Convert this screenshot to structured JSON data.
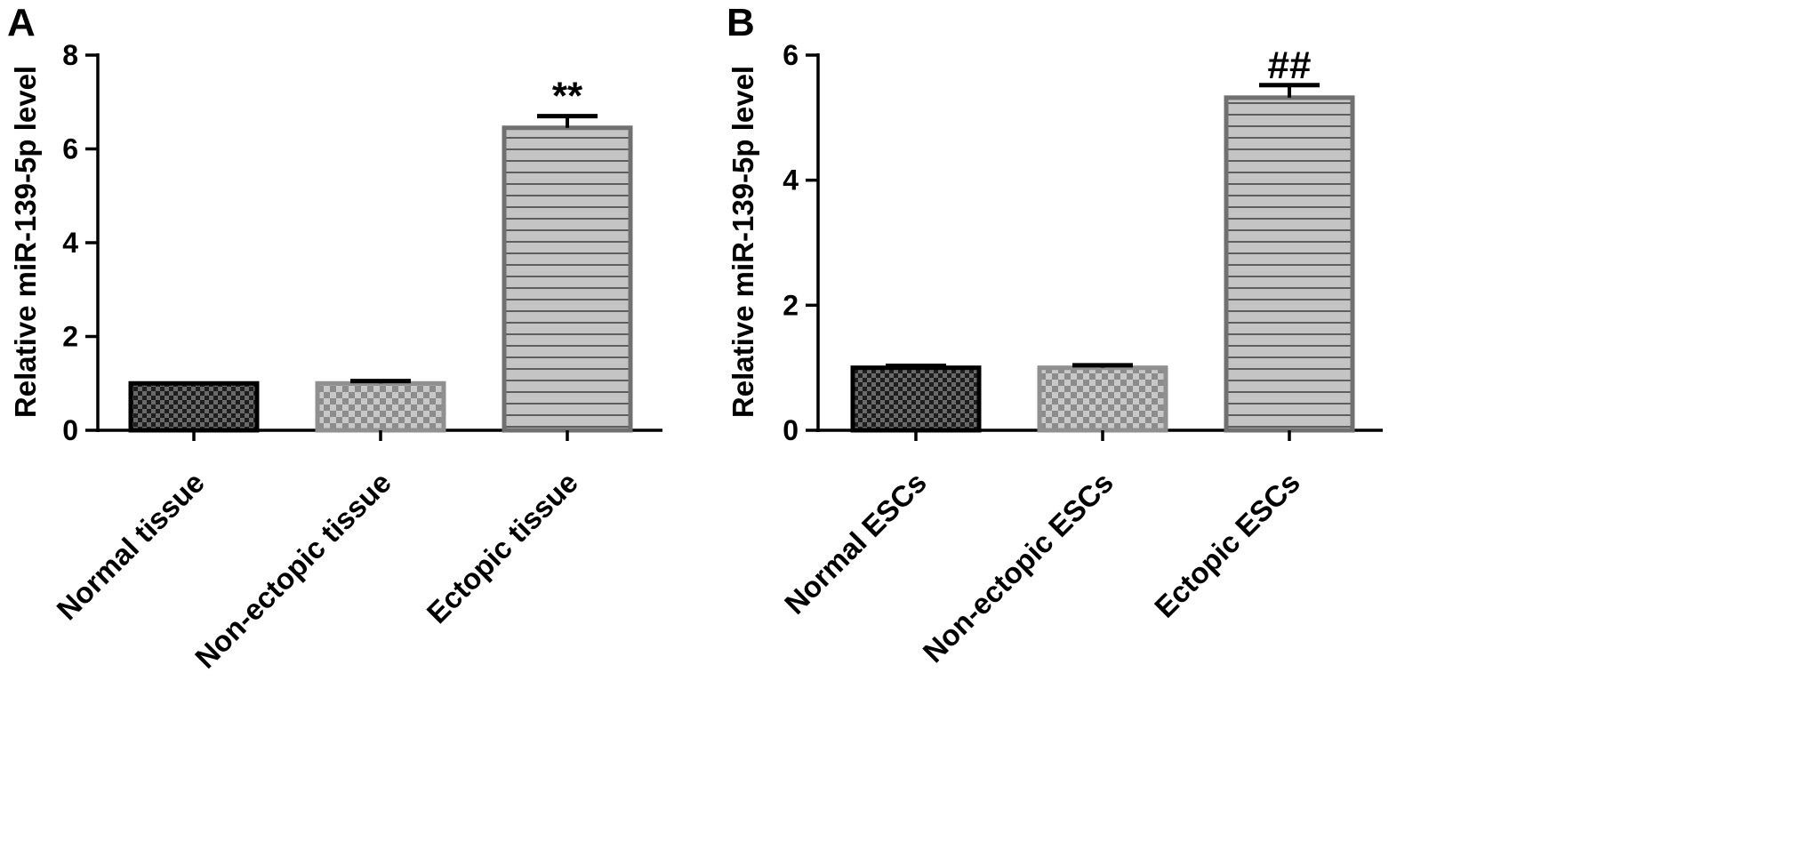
{
  "colors": {
    "normal_fill": "#3a3a3a",
    "normal_stroke": "#000000",
    "nonectopic_fill": "#a0a0a0",
    "nonectopic_stroke": "#909090",
    "ectopic_fill": "#c2c2c2",
    "ectopic_stroke": "#707070"
  },
  "chart_data": [
    {
      "panel": "A",
      "type": "bar",
      "ylabel": "Relative miR-139-5p level",
      "ylim": [
        0,
        8
      ],
      "yticks": [
        "0",
        "2",
        "4",
        "6",
        "8"
      ],
      "categories": [
        "Normal tissue",
        "Non-ectopic tissue",
        "Ectopic tissue"
      ],
      "values": [
        1.0,
        1.0,
        6.45
      ],
      "errors": [
        0.0,
        0.05,
        0.25
      ],
      "patterns": [
        "checker-dark",
        "checker-light",
        "hstripes"
      ],
      "annotations": [
        "",
        "",
        "**"
      ]
    },
    {
      "panel": "B",
      "type": "bar",
      "ylabel": "Relative miR-139-5p level",
      "ylim": [
        0,
        6
      ],
      "yticks": [
        "0",
        "2",
        "4",
        "6"
      ],
      "categories": [
        "Normal ESCs",
        "Non-ectopic ESCs",
        "Ectopic ESCs"
      ],
      "values": [
        1.0,
        1.0,
        5.32
      ],
      "errors": [
        0.03,
        0.04,
        0.2
      ],
      "patterns": [
        "checker-dark",
        "checker-light",
        "hstripes"
      ],
      "annotations": [
        "",
        "",
        "##"
      ]
    }
  ]
}
